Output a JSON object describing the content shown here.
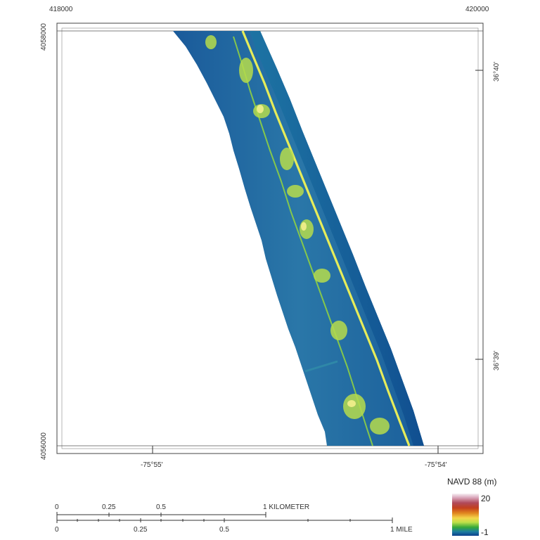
{
  "map": {
    "easting_labels": [
      "418000",
      "420000"
    ],
    "northing_labels": [
      "4058000",
      "4056000"
    ],
    "longitude_labels": [
      "-75°55'",
      "-75°54'"
    ],
    "latitude_labels": [
      "36°40'",
      "36°39'"
    ]
  },
  "legend": {
    "title": "NAVD 88 (m)",
    "max_label": "20",
    "min_label": "-1",
    "max_value": 20,
    "min_value": -1,
    "colors": [
      "#f7f0f4",
      "#b04a5a",
      "#c3401e",
      "#e0841e",
      "#f4d64a",
      "#35a83a",
      "#1d7fa0",
      "#0b3f8c"
    ]
  },
  "scale_bar": {
    "km_labels": [
      "0",
      "0.25",
      "0.5",
      "1 KILOMETER"
    ],
    "mile_labels": [
      "0",
      "0.25",
      "0.5",
      "1 MILE"
    ]
  }
}
